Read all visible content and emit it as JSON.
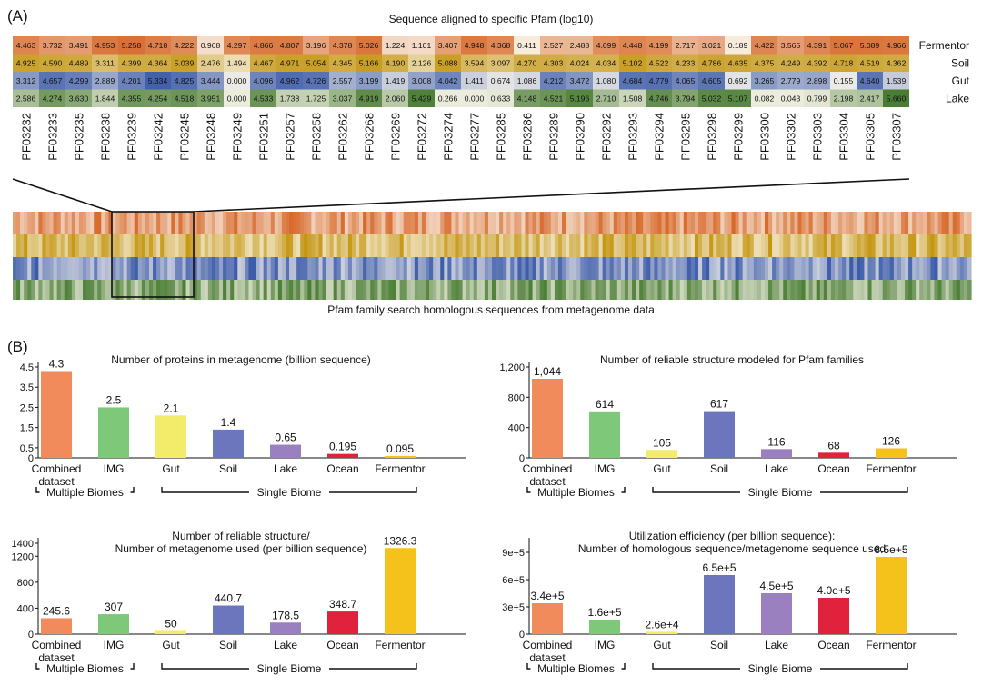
{
  "panel_a": {
    "label": "(A)",
    "title": "Sequence aligned to specific Pfam (log10)",
    "footer": "Pfam family:search homologous sequences from metagenome data"
  },
  "panel_b": {
    "label": "(B)"
  },
  "chart_data": [
    {
      "type": "heatmap",
      "title": "Sequence aligned to specific Pfam (log10)",
      "rows": [
        "Fermentor",
        "Soil",
        "Gut",
        "Lake"
      ],
      "columns": [
        "PF03232",
        "PF03233",
        "PF03235",
        "PF03238",
        "PF03239",
        "PF03242",
        "PF03245",
        "PF03248",
        "PF03249",
        "PF03251",
        "PF03257",
        "PF03258",
        "PF03262",
        "PF03268",
        "PF03269",
        "PF03272",
        "PF03274",
        "PF03277",
        "PF03285",
        "PF03286",
        "PF03289",
        "PF03290",
        "PF03292",
        "PF03293",
        "PF03294",
        "PF03295",
        "PF03298",
        "PF03299",
        "PF03300",
        "PF03302",
        "PF03303",
        "PF03304",
        "PF03305",
        "PF03307"
      ],
      "values": [
        [
          "4.463",
          "3.732",
          "3.491",
          "4.953",
          "5.258",
          "4.718",
          "4.222",
          "0.968",
          "4.297",
          "4.866",
          "4.807",
          "3.196",
          "4.378",
          "5.026",
          "1.224",
          "1.101",
          "3.407",
          "4.948",
          "4.368",
          "0.411",
          "2.527",
          "2.488",
          "4.099",
          "4.448",
          "4.199",
          "2.717",
          "3.021",
          "0.189",
          "4.422",
          "3.565",
          "4.391",
          "5.067",
          "5.089",
          "4.966"
        ],
        [
          "4.925",
          "4.590",
          "4.489",
          "3.311",
          "4.399",
          "4.364",
          "5.039",
          "2.476",
          "1.494",
          "4.467",
          "4.971",
          "5.054",
          "4.345",
          "5.166",
          "4.190",
          "2.126",
          "5.088",
          "3.594",
          "3.097",
          "4.270",
          "4.303",
          "4.024",
          "4.034",
          "5.102",
          "4.522",
          "4.233",
          "4.786",
          "4.635",
          "4.375",
          "4.249",
          "4.392",
          "4.718",
          "4.519",
          "4.362"
        ],
        [
          "3.312",
          "4.657",
          "4.299",
          "2.889",
          "4.201",
          "5.334",
          "4.825",
          "3.444",
          "0.000",
          "4.096",
          "4.962",
          "4.726",
          "2.557",
          "3.199",
          "1.419",
          "3.008",
          "4.042",
          "1.411",
          "0.674",
          "1.086",
          "4.212",
          "3.472",
          "1.080",
          "4.684",
          "4.779",
          "4.065",
          "4.605",
          "0.692",
          "3.265",
          "2.779",
          "2.898",
          "0.155",
          "4.640",
          "1.539"
        ],
        [
          "2.586",
          "4.274",
          "3.630",
          "1.844",
          "4.355",
          "4.254",
          "4.518",
          "3.951",
          "0.000",
          "4.533",
          "1.738",
          "1.725",
          "3.037",
          "4.919",
          "2.060",
          "5.429",
          "0.266",
          "0.000",
          "0.633",
          "4.148",
          "4.521",
          "5.196",
          "2.710",
          "1.508",
          "4.746",
          "3.794",
          "5.032",
          "5.107",
          "0.082",
          "0.043",
          "0.799",
          "2.198",
          "2.417",
          "5.660"
        ]
      ],
      "colors": {
        "Fermentor": "#d7682a",
        "Soil": "#c49612",
        "Gut": "#3a5aa8",
        "Lake": "#4a7d34"
      }
    },
    {
      "type": "bar",
      "title": "Number of proteins in metagenome (billion sequence)",
      "categories": [
        "Combined dataset",
        "IMG",
        "Gut",
        "Soil",
        "Lake",
        "Ocean",
        "Fermentor"
      ],
      "values": [
        4.3,
        2.5,
        2.1,
        1.4,
        0.65,
        0.195,
        0.095
      ],
      "labels": [
        "4.3",
        "2.5",
        "2.1",
        "1.4",
        "0.65",
        "0.195",
        "0.095"
      ],
      "yticks": [
        "4.5",
        "3.5",
        "2.5",
        "1.5",
        "0.5",
        "0"
      ],
      "ytick_values": [
        4.5,
        3.5,
        2.5,
        1.5,
        0.5,
        0
      ],
      "ylim": [
        0,
        4.5
      ],
      "group_labels": [
        "Multiple Biomes",
        "Single Biome"
      ]
    },
    {
      "type": "bar",
      "title": "Number of reliable structure modeled for Pfam families",
      "categories": [
        "Combined dataset",
        "IMG",
        "Gut",
        "Soil",
        "Lake",
        "Ocean",
        "Fermentor"
      ],
      "values": [
        1044,
        614,
        105,
        617,
        116,
        68,
        126
      ],
      "labels": [
        "1,044",
        "614",
        "105",
        "617",
        "116",
        "68",
        "126"
      ],
      "yticks": [
        "1,200",
        "800",
        "400",
        "0"
      ],
      "ytick_values": [
        1200,
        800,
        400,
        0
      ],
      "ylim": [
        0,
        1200
      ],
      "group_labels": [
        "Multiple Biomes",
        "Single Biome"
      ]
    },
    {
      "type": "bar",
      "title": "Number of reliable structure/\nNumber of metagenome used (per billion sequence)",
      "categories": [
        "Combined dataset",
        "IMG",
        "Gut",
        "Soil",
        "Lake",
        "Ocean",
        "Fermentor"
      ],
      "values": [
        245.6,
        307,
        50,
        440.7,
        178.5,
        348.7,
        1326.3
      ],
      "labels": [
        "245.6",
        "307",
        "50",
        "440.7",
        "178.5",
        "348.7",
        "1326.3"
      ],
      "yticks": [
        "1400",
        "1200",
        "800",
        "400",
        "0"
      ],
      "ytick_values": [
        1400,
        1200,
        800,
        400,
        0
      ],
      "ylim": [
        0,
        1400
      ],
      "group_labels": [
        "Multiple Biomes",
        "Single Biome"
      ]
    },
    {
      "type": "bar",
      "title": "Utilization efficiency (per billion sequence):\nNumber of homologous sequence/metagenome sequence used",
      "categories": [
        "Combined dataset",
        "IMG",
        "Gut",
        "Soil",
        "Lake",
        "Ocean",
        "Fermentor"
      ],
      "values": [
        340000,
        160000,
        26000,
        650000,
        450000,
        400000,
        850000
      ],
      "labels": [
        "3.4e+5",
        "1.6e+5",
        "2.6e+4",
        "6.5e+5",
        "4.5e+5",
        "4.0e+5",
        "8.5e+5"
      ],
      "yticks": [
        "9e+5",
        "6e+5",
        "3e+5",
        "0"
      ],
      "ytick_values": [
        900000,
        600000,
        300000,
        0
      ],
      "ylim": [
        0,
        1000000
      ],
      "group_labels": [
        "Multiple Biomes",
        "Single Biome"
      ]
    }
  ],
  "bar_colors": [
    "#f28b5b",
    "#7ec87a",
    "#f2ec6a",
    "#6b76bd",
    "#9b80c0",
    "#e0223d",
    "#f5c21b"
  ]
}
